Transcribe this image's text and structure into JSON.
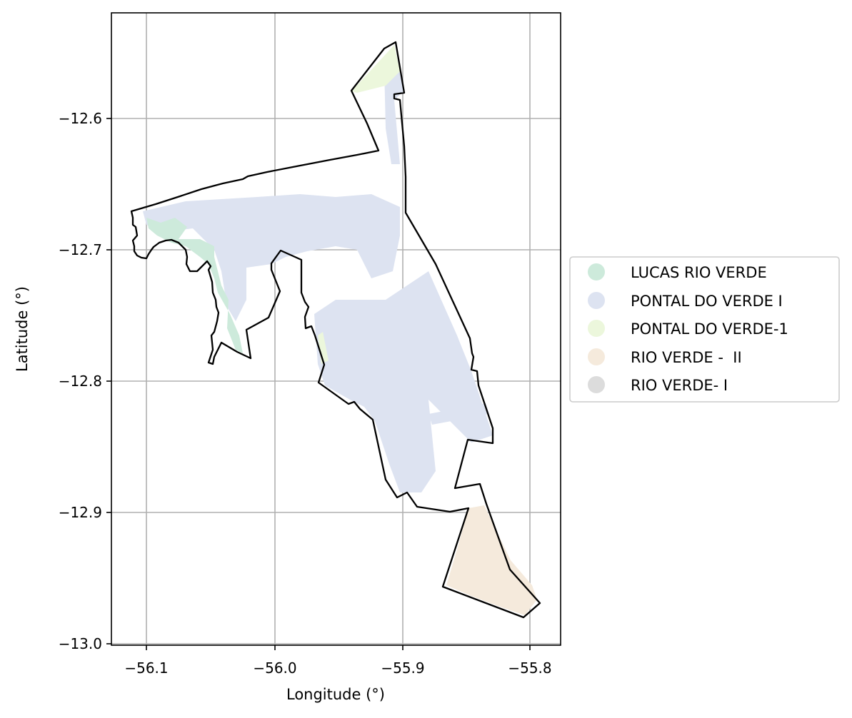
{
  "map": {
    "xlabel": "Longitude (°)",
    "ylabel": "Latitude (°)",
    "xlim": [
      -56.127,
      -55.777
    ],
    "ylim": [
      -13.0,
      -12.52
    ],
    "grid": true,
    "x_ticks": [
      {
        "value": -56.1,
        "label": "−56.1"
      },
      {
        "value": -56.0,
        "label": "−56.0"
      },
      {
        "value": -55.9,
        "label": "−55.9"
      },
      {
        "value": -55.8,
        "label": "−55.8"
      }
    ],
    "y_ticks": [
      {
        "value": -12.6,
        "label": "−12.6"
      },
      {
        "value": -12.7,
        "label": "−12.7"
      },
      {
        "value": -12.8,
        "label": "−12.8"
      },
      {
        "value": -12.9,
        "label": "−12.9"
      },
      {
        "value": -13.0,
        "label": "−13.0"
      }
    ]
  },
  "legend": {
    "placement": "center-right, outside plot",
    "items": [
      {
        "label": "LUCAS RIO VERDE",
        "color": "#cdeadb"
      },
      {
        "label": "PONTAL DO VERDE I",
        "color": "#dde3f1"
      },
      {
        "label": "PONTAL DO VERDE-1",
        "color": "#ecf7dc"
      },
      {
        "label": "RIO VERDE -  II",
        "color": "#f5eadc"
      },
      {
        "label": "RIO VERDE- I",
        "color": "#dcdcdc"
      }
    ]
  }
}
